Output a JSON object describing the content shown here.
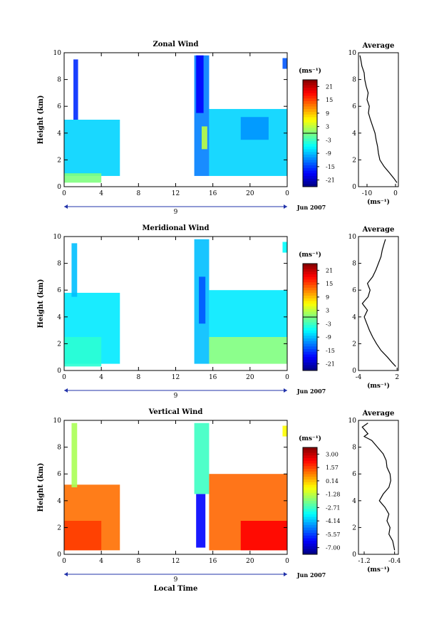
{
  "chart_data": [
    {
      "type": "heatmap",
      "title": "Zonal Wind",
      "ylabel": "Height (km)",
      "xlabel": "",
      "xticks": [
        "0",
        "4",
        "8",
        "12",
        "16",
        "20",
        "0"
      ],
      "yticks": [
        "0",
        "2",
        "4",
        "6",
        "8",
        "10"
      ],
      "xlim": [
        0,
        24
      ],
      "ylim": [
        0,
        10
      ],
      "day_label": "9",
      "date_label": "Jun 2007",
      "colorbar": {
        "unit": "(ms⁻¹)",
        "ticks": [
          "21",
          "15",
          "9",
          "3",
          "-3",
          "-9",
          "-15",
          "-21"
        ],
        "range": [
          -24,
          24
        ],
        "zero_line": 0
      },
      "regions": [
        {
          "x0": 0.0,
          "x1": 6.0,
          "y0": 0.8,
          "y1": 5.0,
          "value": -8
        },
        {
          "x0": 0.0,
          "x1": 4.0,
          "y0": 0.3,
          "y1": 1.0,
          "value": 0
        },
        {
          "x0": 1.0,
          "x1": 1.5,
          "y0": 5.0,
          "y1": 9.5,
          "value": -16
        },
        {
          "x0": 14.0,
          "x1": 15.6,
          "y0": 0.8,
          "y1": 9.8,
          "value": -12
        },
        {
          "x0": 14.2,
          "x1": 15.0,
          "y0": 5.5,
          "y1": 9.8,
          "value": -18
        },
        {
          "x0": 15.6,
          "x1": 24.0,
          "y0": 0.8,
          "y1": 5.8,
          "value": -8
        },
        {
          "x0": 19.0,
          "x1": 22.0,
          "y0": 3.5,
          "y1": 5.2,
          "value": -11
        },
        {
          "x0": 14.8,
          "x1": 15.4,
          "y0": 2.8,
          "y1": 4.5,
          "value": 3
        },
        {
          "x0": 23.5,
          "x1": 24.0,
          "y0": 8.8,
          "y1": 9.6,
          "value": -14
        }
      ],
      "average": {
        "title": "Average",
        "unit": "(ms⁻¹)",
        "xticks": [
          "-10",
          "0"
        ],
        "xlim": [
          -13,
          1
        ],
        "heights": [
          0.3,
          0.6,
          1.0,
          1.5,
          2.0,
          2.5,
          3.0,
          3.5,
          4.0,
          4.5,
          5.0,
          5.5,
          6.0,
          6.5,
          7.0,
          7.5,
          8.0,
          8.5,
          9.0,
          9.5,
          9.8
        ],
        "values": [
          0.5,
          -0.5,
          -2.0,
          -4.0,
          -5.5,
          -6.0,
          -6.3,
          -6.8,
          -7.2,
          -8.0,
          -8.8,
          -9.5,
          -9.2,
          -10.0,
          -9.6,
          -10.3,
          -10.8,
          -11.0,
          -11.8,
          -12.2,
          -12.5
        ]
      }
    },
    {
      "type": "heatmap",
      "title": "Meridional Wind",
      "ylabel": "Height (km)",
      "xlabel": "",
      "xticks": [
        "0",
        "4",
        "8",
        "12",
        "16",
        "20",
        "0"
      ],
      "yticks": [
        "0",
        "2",
        "4",
        "6",
        "8",
        "10"
      ],
      "xlim": [
        0,
        24
      ],
      "ylim": [
        0,
        10
      ],
      "day_label": "9",
      "date_label": "Jun 2007",
      "colorbar": {
        "unit": "(ms⁻¹)",
        "ticks": [
          "21",
          "15",
          "9",
          "3",
          "-3",
          "-9",
          "-15",
          "-21"
        ],
        "range": [
          -24,
          24
        ],
        "zero_line": 0
      },
      "regions": [
        {
          "x0": 0.0,
          "x1": 6.0,
          "y0": 0.5,
          "y1": 5.8,
          "value": -7
        },
        {
          "x0": 0.0,
          "x1": 4.0,
          "y0": 0.3,
          "y1": 2.5,
          "value": -4
        },
        {
          "x0": 0.8,
          "x1": 1.4,
          "y0": 5.5,
          "y1": 9.5,
          "value": -9
        },
        {
          "x0": 14.0,
          "x1": 15.6,
          "y0": 0.5,
          "y1": 9.8,
          "value": -9
        },
        {
          "x0": 14.5,
          "x1": 15.2,
          "y0": 3.5,
          "y1": 7.0,
          "value": -14
        },
        {
          "x0": 15.6,
          "x1": 24.0,
          "y0": 2.5,
          "y1": 6.0,
          "value": -7
        },
        {
          "x0": 15.6,
          "x1": 24.0,
          "y0": 0.5,
          "y1": 2.5,
          "value": 0
        },
        {
          "x0": 23.5,
          "x1": 24.0,
          "y0": 8.8,
          "y1": 9.6,
          "value": -6
        }
      ],
      "average": {
        "title": "Average",
        "unit": "(ms⁻¹)",
        "xticks": [
          "-4",
          "2"
        ],
        "xlim": [
          -4,
          2.2
        ],
        "heights": [
          0.3,
          0.6,
          1.0,
          1.5,
          2.0,
          2.5,
          3.0,
          3.5,
          4.0,
          4.5,
          5.0,
          5.5,
          6.0,
          6.5,
          7.0,
          7.5,
          8.0,
          8.5,
          9.0,
          9.5,
          9.8
        ],
        "values": [
          1.8,
          1.2,
          0.5,
          -0.5,
          -1.2,
          -1.8,
          -2.3,
          -2.7,
          -3.1,
          -2.6,
          -3.4,
          -2.5,
          -2.2,
          -2.6,
          -1.8,
          -1.3,
          -0.9,
          -0.5,
          -0.3,
          0.0,
          0.2
        ]
      }
    },
    {
      "type": "heatmap",
      "title": "Vertical Wind",
      "ylabel": "Height (km)",
      "xlabel": "Local Time",
      "xticks": [
        "0",
        "4",
        "8",
        "12",
        "16",
        "20",
        "0"
      ],
      "yticks": [
        "0",
        "2",
        "4",
        "6",
        "8",
        "10"
      ],
      "xlim": [
        0,
        24
      ],
      "ylim": [
        0,
        10
      ],
      "day_label": "9",
      "date_label": "Jun 2007",
      "colorbar": {
        "unit": "(ms⁻¹)",
        "ticks": [
          "3.00",
          "1.57",
          "0.14",
          "-1.28",
          "-2.71",
          "-4.14",
          "-5.57",
          "-7.00"
        ],
        "range": [
          -8.0,
          4.0
        ],
        "zero_line": null
      },
      "regions": [
        {
          "x0": 0.0,
          "x1": 6.0,
          "y0": 0.3,
          "y1": 5.2,
          "value": 1.2
        },
        {
          "x0": 0.0,
          "x1": 4.0,
          "y0": 0.3,
          "y1": 2.5,
          "value": 1.8
        },
        {
          "x0": 0.8,
          "x1": 1.4,
          "y0": 5.0,
          "y1": 9.8,
          "value": -1.5
        },
        {
          "x0": 14.0,
          "x1": 15.6,
          "y0": 4.5,
          "y1": 9.8,
          "value": -2.8
        },
        {
          "x0": 14.2,
          "x1": 15.2,
          "y0": 0.5,
          "y1": 4.5,
          "value": -6.5
        },
        {
          "x0": 15.6,
          "x1": 24.0,
          "y0": 0.3,
          "y1": 6.0,
          "value": 1.3
        },
        {
          "x0": 19.0,
          "x1": 24.0,
          "y0": 0.3,
          "y1": 2.5,
          "value": 2.5
        },
        {
          "x0": 23.5,
          "x1": 24.0,
          "y0": 8.8,
          "y1": 9.6,
          "value": -0.5
        }
      ],
      "average": {
        "title": "Average",
        "unit": "(ms⁻¹)",
        "xticks": [
          "-1.2",
          "-0.4"
        ],
        "xlim": [
          -1.35,
          -0.3
        ],
        "heights": [
          0.3,
          0.6,
          1.0,
          1.5,
          2.0,
          2.5,
          3.0,
          3.5,
          4.0,
          4.5,
          5.0,
          5.5,
          6.0,
          6.5,
          7.0,
          7.5,
          8.0,
          8.5,
          8.8,
          9.0,
          9.5,
          9.8
        ],
        "values": [
          -0.4,
          -0.42,
          -0.45,
          -0.55,
          -0.52,
          -0.6,
          -0.55,
          -0.65,
          -0.8,
          -0.7,
          -0.55,
          -0.5,
          -0.52,
          -0.6,
          -0.62,
          -0.7,
          -0.85,
          -1.0,
          -1.2,
          -1.1,
          -1.25,
          -1.1
        ]
      }
    }
  ]
}
